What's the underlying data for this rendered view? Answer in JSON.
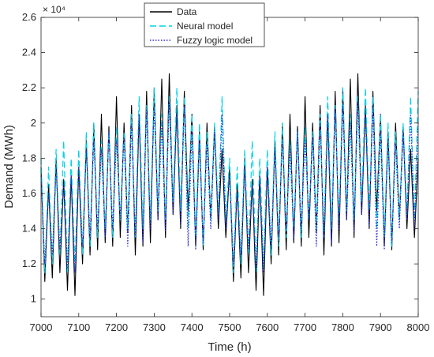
{
  "chart_data": {
    "type": "line",
    "xlabel": "Time (h)",
    "ylabel": "Demand (MWh)",
    "xlim": [
      7000,
      8000
    ],
    "ylim": [
      9000,
      26000
    ],
    "x_ticks": [
      7000,
      7100,
      7200,
      7300,
      7400,
      7500,
      7600,
      7700,
      7800,
      7900,
      8000
    ],
    "y_ticks": [
      10000,
      12000,
      14000,
      16000,
      18000,
      20000,
      22000,
      24000,
      26000
    ],
    "x_tick_labels": [
      "7000",
      "7100",
      "7200",
      "7300",
      "7400",
      "7500",
      "7600",
      "7700",
      "7800",
      "7900",
      "8000"
    ],
    "y_tick_labels": [
      "1",
      "1.2",
      "1.4",
      "1.6",
      "1.8",
      "2",
      "2.2",
      "2.4",
      "2.6"
    ],
    "y_exponent_label": "× 10⁴",
    "grid": false,
    "legend_position": "top-center",
    "series": [
      {
        "name": "Data",
        "color": "#000000",
        "style": "solid",
        "x": [
          7000,
          7010,
          7020,
          7030,
          7040,
          7050,
          7060,
          7070,
          7080,
          7090,
          7100,
          7110,
          7120,
          7130,
          7140,
          7150,
          7160,
          7170,
          7180,
          7190,
          7200,
          7210,
          7220,
          7230,
          7240,
          7250,
          7260,
          7270,
          7280,
          7290,
          7300,
          7310,
          7320,
          7330,
          7340,
          7350,
          7360,
          7370,
          7380,
          7390,
          7400,
          7410,
          7420,
          7430,
          7440,
          7450,
          7460,
          7470,
          7480,
          7490,
          7500,
          7510,
          7520,
          7530,
          7540,
          7550,
          7560,
          7570,
          7580,
          7590,
          7600,
          7610,
          7620,
          7630,
          7640,
          7650,
          7660,
          7670,
          7680,
          7690,
          7700,
          7710,
          7720,
          7730,
          7740,
          7750,
          7760,
          7770,
          7780,
          7790,
          7800,
          7810,
          7820,
          7830,
          7840,
          7850,
          7860,
          7870,
          7880,
          7890,
          7900,
          7910,
          7920,
          7930,
          7940,
          7950,
          7960,
          7970,
          7980,
          7990,
          8000
        ],
        "y": [
          17500,
          11000,
          16500,
          11200,
          18000,
          11500,
          16800,
          10500,
          17000,
          10200,
          17500,
          12000,
          19000,
          12500,
          20000,
          12800,
          20500,
          13200,
          19800,
          13000,
          21500,
          13500,
          20000,
          13800,
          21000,
          12500,
          20500,
          13000,
          21800,
          13200,
          22000,
          14500,
          22500,
          13500,
          22800,
          14800,
          21000,
          14000,
          21800,
          15000,
          20500,
          13000,
          19500,
          12800,
          20000,
          14500,
          19800,
          14000,
          18500,
          13500,
          17500,
          11000,
          16500,
          11200,
          18000,
          11500,
          16800,
          10500,
          17000,
          10200,
          17500,
          12000,
          19000,
          12500,
          20000,
          12800,
          20500,
          13200,
          19800,
          13000,
          21500,
          13500,
          20000,
          13800,
          21000,
          12500,
          20500,
          13000,
          21800,
          13200,
          22000,
          14500,
          22500,
          13500,
          22800,
          14800,
          21000,
          14000,
          21800,
          15000,
          20500,
          13000,
          19500,
          12800,
          20000,
          14500,
          19800,
          14000,
          18500,
          13500,
          18000
        ]
      },
      {
        "name": "Neural model",
        "color": "#00d2e6",
        "style": "dashed",
        "x": [
          7000,
          7010,
          7020,
          7030,
          7040,
          7050,
          7060,
          7070,
          7080,
          7090,
          7100,
          7110,
          7120,
          7130,
          7140,
          7150,
          7160,
          7170,
          7180,
          7190,
          7200,
          7210,
          7220,
          7230,
          7240,
          7250,
          7260,
          7270,
          7280,
          7290,
          7300,
          7310,
          7320,
          7330,
          7340,
          7350,
          7360,
          7370,
          7380,
          7390,
          7400,
          7410,
          7420,
          7430,
          7440,
          7450,
          7460,
          7470,
          7480,
          7490,
          7500,
          7510,
          7520,
          7530,
          7540,
          7550,
          7560,
          7570,
          7580,
          7590,
          7600,
          7610,
          7620,
          7630,
          7640,
          7650,
          7660,
          7670,
          7680,
          7690,
          7700,
          7710,
          7720,
          7730,
          7740,
          7750,
          7760,
          7770,
          7780,
          7790,
          7800,
          7810,
          7820,
          7830,
          7840,
          7850,
          7860,
          7870,
          7880,
          7890,
          7900,
          7910,
          7920,
          7930,
          7940,
          7950,
          7960,
          7970,
          7980,
          7990,
          8000
        ],
        "y": [
          18000,
          11500,
          17500,
          12000,
          18500,
          12500,
          19000,
          11500,
          18000,
          11800,
          18500,
          12500,
          19500,
          13000,
          20000,
          13500,
          19000,
          14000,
          19500,
          13500,
          19800,
          14500,
          19500,
          14000,
          20500,
          13500,
          21500,
          14000,
          21000,
          14500,
          22000,
          15000,
          20500,
          14500,
          21500,
          15500,
          22000,
          15000,
          21500,
          14000,
          20500,
          13500,
          20000,
          13000,
          19500,
          14500,
          20000,
          14800,
          21500,
          14500,
          18000,
          11500,
          17500,
          12000,
          18500,
          12500,
          19000,
          11500,
          18000,
          11800,
          18500,
          12500,
          19500,
          13000,
          20000,
          13500,
          19000,
          14000,
          19500,
          13500,
          19800,
          14500,
          19500,
          14000,
          20500,
          13500,
          21500,
          14000,
          21000,
          14500,
          22000,
          15000,
          20500,
          14500,
          21500,
          15500,
          22000,
          15000,
          21500,
          14000,
          20500,
          13500,
          20000,
          13000,
          19500,
          14500,
          20000,
          14800,
          21500,
          14500,
          21800
        ]
      },
      {
        "name": "Fuzzy logic model",
        "color": "#2b2bd9",
        "style": "dotted",
        "x": [
          7000,
          7010,
          7020,
          7030,
          7040,
          7050,
          7060,
          7070,
          7080,
          7090,
          7100,
          7110,
          7120,
          7130,
          7140,
          7150,
          7160,
          7170,
          7180,
          7190,
          7200,
          7210,
          7220,
          7230,
          7240,
          7250,
          7260,
          7270,
          7280,
          7290,
          7300,
          7310,
          7320,
          7330,
          7340,
          7350,
          7360,
          7370,
          7380,
          7390,
          7400,
          7410,
          7420,
          7430,
          7440,
          7450,
          7460,
          7470,
          7480,
          7490,
          7500,
          7510,
          7520,
          7530,
          7540,
          7550,
          7560,
          7570,
          7580,
          7590,
          7600,
          7610,
          7620,
          7630,
          7640,
          7650,
          7660,
          7670,
          7680,
          7690,
          7700,
          7710,
          7720,
          7730,
          7740,
          7750,
          7760,
          7770,
          7780,
          7790,
          7800,
          7810,
          7820,
          7830,
          7840,
          7850,
          7860,
          7870,
          7880,
          7890,
          7900,
          7910,
          7920,
          7930,
          7940,
          7950,
          7960,
          7970,
          7980,
          7990,
          8000
        ],
        "y": [
          17000,
          12000,
          16000,
          12500,
          17500,
          12800,
          16500,
          11800,
          17000,
          11500,
          17500,
          13000,
          18500,
          13500,
          19000,
          14000,
          18500,
          13500,
          19500,
          14000,
          19000,
          14500,
          19200,
          13000,
          20000,
          13500,
          20500,
          13200,
          20800,
          14000,
          21000,
          14500,
          20000,
          13800,
          21200,
          14800,
          20500,
          14200,
          21000,
          13000,
          19500,
          12800,
          19000,
          13200,
          18800,
          14000,
          19500,
          14500,
          20500,
          14000,
          17000,
          12000,
          16000,
          12500,
          17500,
          12800,
          16500,
          11800,
          17000,
          11500,
          17500,
          13000,
          18500,
          13500,
          19000,
          14000,
          18500,
          13500,
          19500,
          14000,
          19000,
          14500,
          19200,
          13000,
          20000,
          13500,
          20500,
          13200,
          20800,
          14000,
          21000,
          14500,
          20000,
          13800,
          21200,
          14800,
          20500,
          14200,
          21000,
          13000,
          19500,
          12800,
          19000,
          13200,
          18800,
          14000,
          19500,
          14500,
          20500,
          14000,
          20000
        ]
      }
    ]
  }
}
